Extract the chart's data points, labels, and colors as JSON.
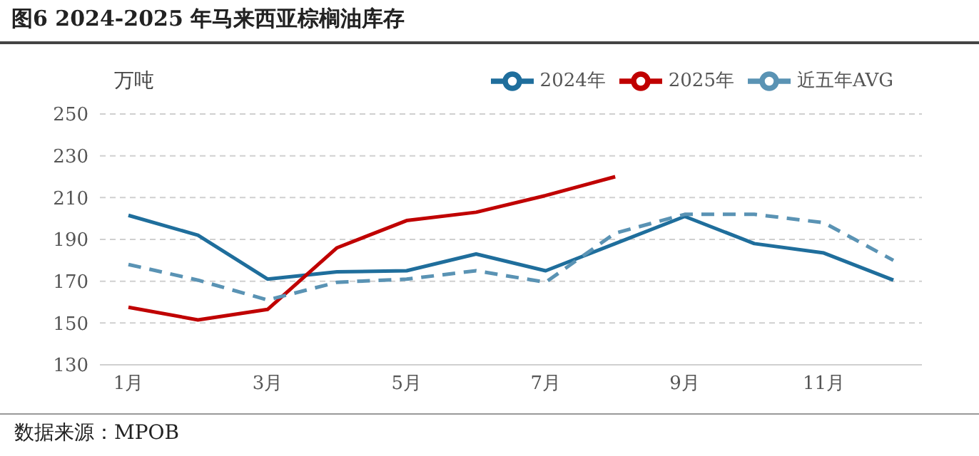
{
  "chart_data": {
    "type": "line",
    "title": "图6 2024-2025 年马来西亚棕榈油库存",
    "ylabel": "万吨",
    "annotations": [
      "数据来源：MPOB"
    ],
    "categories": [
      "1月",
      null,
      "3月",
      null,
      "5月",
      null,
      "7月",
      null,
      "9月",
      null,
      "11月",
      null
    ],
    "series": [
      {
        "name": "2024年",
        "color": "#1f6e9c",
        "values": [
          201.5,
          192,
          171,
          174.5,
          175,
          183,
          175,
          188,
          201,
          188,
          183.5,
          170.5
        ]
      },
      {
        "name": "2025年",
        "color": "#c00000",
        "values": [
          157.5,
          151.5,
          156.5,
          186,
          199,
          203,
          211,
          220,
          null,
          null,
          null,
          null
        ]
      },
      {
        "name": "近五年AVG",
        "color": "#5a93b4",
        "line_style": "dashed",
        "values": [
          178,
          170.5,
          161,
          169.5,
          171,
          175,
          169.5,
          193,
          202,
          202,
          198,
          180
        ]
      }
    ],
    "ylim": [
      130,
      250
    ],
    "yticks": [
      130,
      150,
      170,
      190,
      210,
      230,
      250
    ],
    "grid": "y",
    "legend": "top right",
    "marker": "none"
  }
}
